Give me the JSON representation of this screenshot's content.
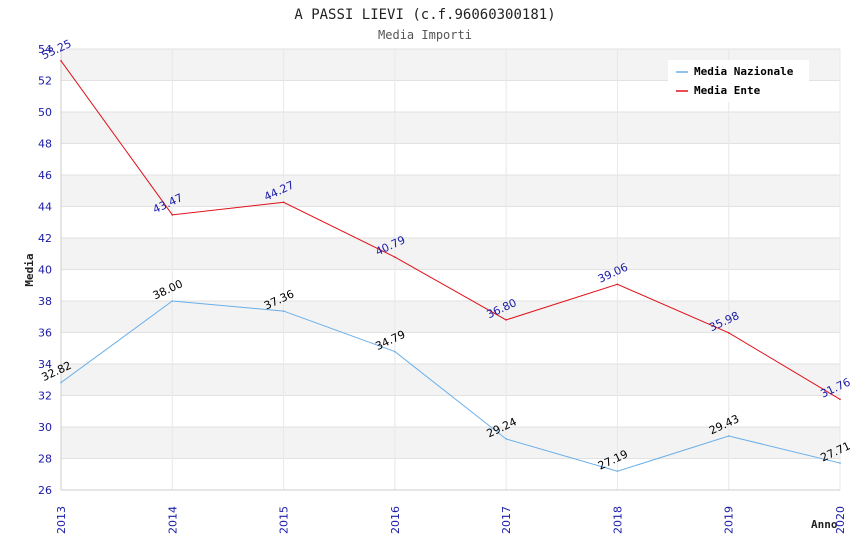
{
  "chart_data": {
    "type": "line",
    "title": "A PASSI LIEVI (c.f.96060300181)",
    "subtitle": "Media Importi",
    "xlabel": "Anno",
    "ylabel": "Media",
    "x": [
      "2013",
      "2014",
      "2015",
      "2016",
      "2017",
      "2018",
      "2019",
      "2020"
    ],
    "ylim": [
      26,
      54
    ],
    "yticks": [
      26,
      28,
      30,
      32,
      34,
      36,
      38,
      40,
      42,
      44,
      46,
      48,
      50,
      52,
      54
    ],
    "legend_position": "top-right",
    "series": [
      {
        "name": "Media Nazionale",
        "color": "#6aaee8",
        "label_color": "#000000",
        "values": [
          32.82,
          38.0,
          37.36,
          34.79,
          29.24,
          27.19,
          29.43,
          27.71
        ],
        "labels": [
          "32.82",
          "38.00",
          "37.36",
          "34.79",
          "29.24",
          "27.19",
          "29.43",
          "27.71"
        ]
      },
      {
        "name": "Media Ente",
        "color": "#e0101a",
        "label_color": "#1a1aa8",
        "values": [
          53.25,
          43.47,
          44.27,
          40.79,
          36.8,
          39.06,
          35.98,
          31.76
        ],
        "labels": [
          "53.25",
          "43.47",
          "44.27",
          "40.79",
          "36.80",
          "39.06",
          "35.98",
          "31.76"
        ]
      }
    ]
  }
}
